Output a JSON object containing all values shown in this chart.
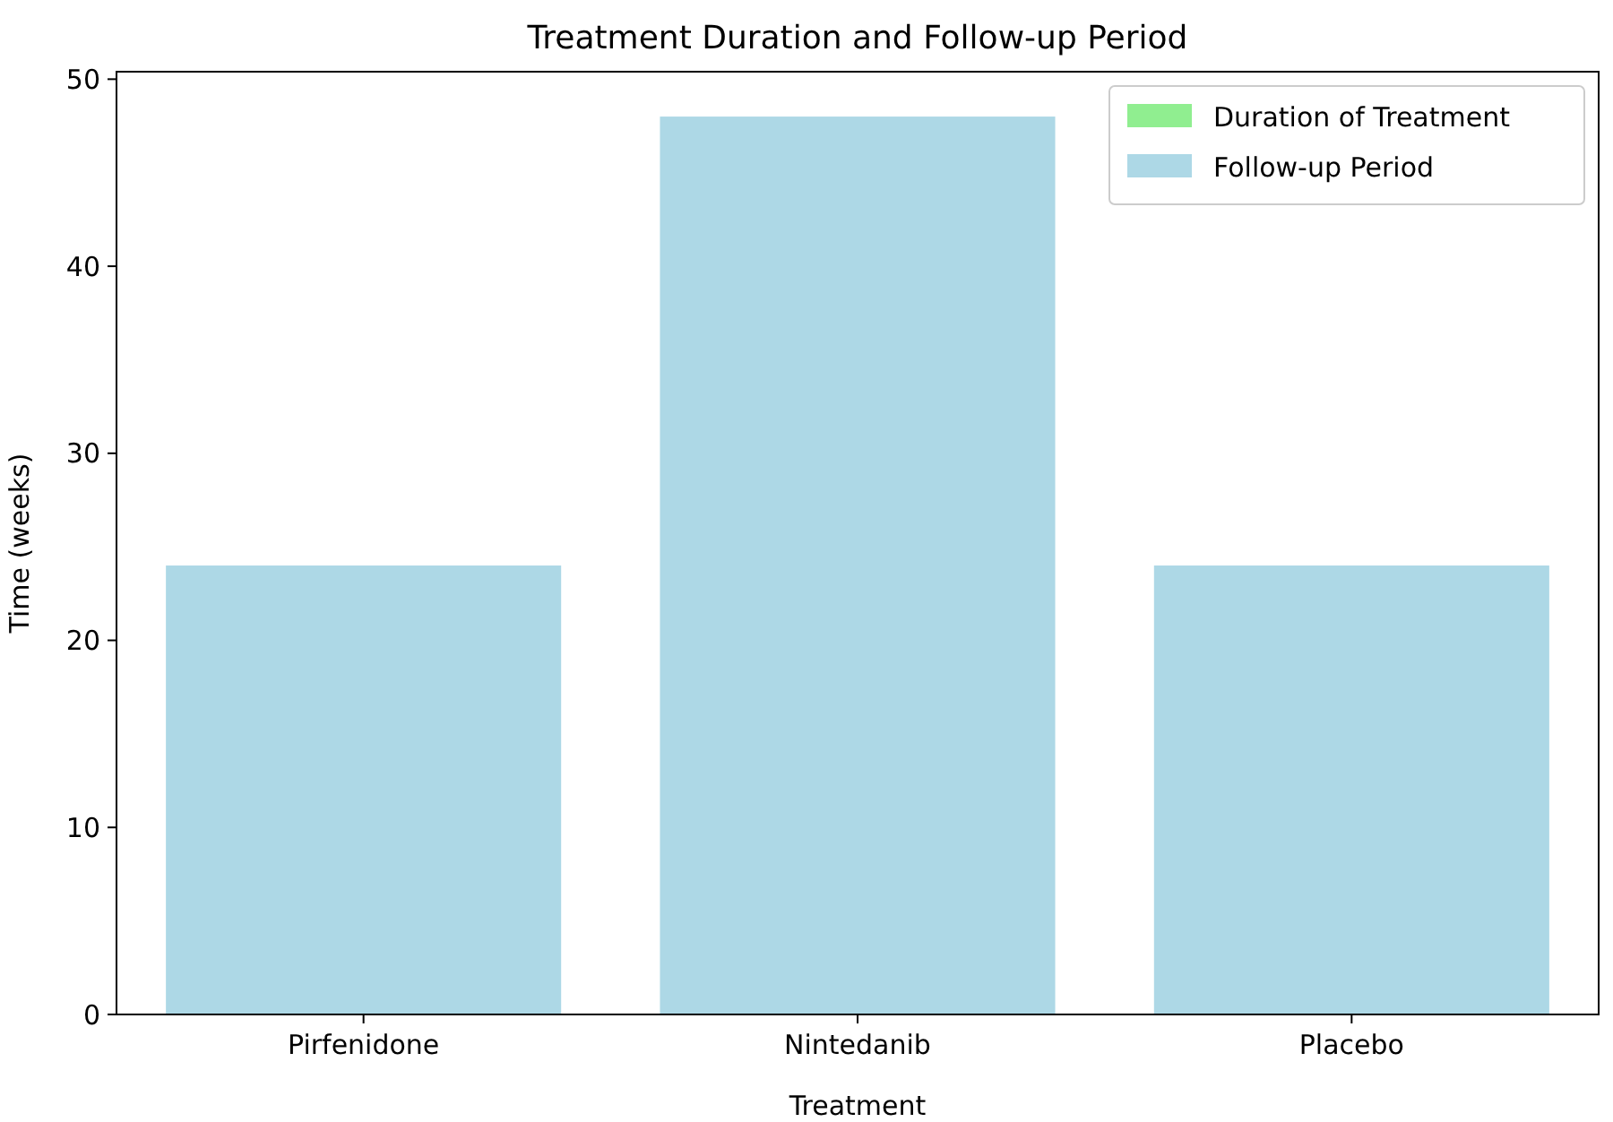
{
  "chart_data": {
    "type": "bar",
    "title": "Treatment Duration and Follow-up Period",
    "xlabel": "Treatment",
    "ylabel": "Time (weeks)",
    "categories": [
      "Pirfenidone",
      "Nintedanib",
      "Placebo"
    ],
    "series": [
      {
        "name": "Duration of Treatment",
        "color": "#90ee90",
        "values": [
          null,
          null,
          null
        ]
      },
      {
        "name": "Follow-up Period",
        "color": "#add8e6",
        "values": [
          24,
          48,
          24
        ]
      }
    ],
    "ylim": [
      0,
      50.4
    ],
    "yticks": [
      0,
      10,
      20,
      30,
      40,
      50
    ],
    "legend": "top right"
  }
}
